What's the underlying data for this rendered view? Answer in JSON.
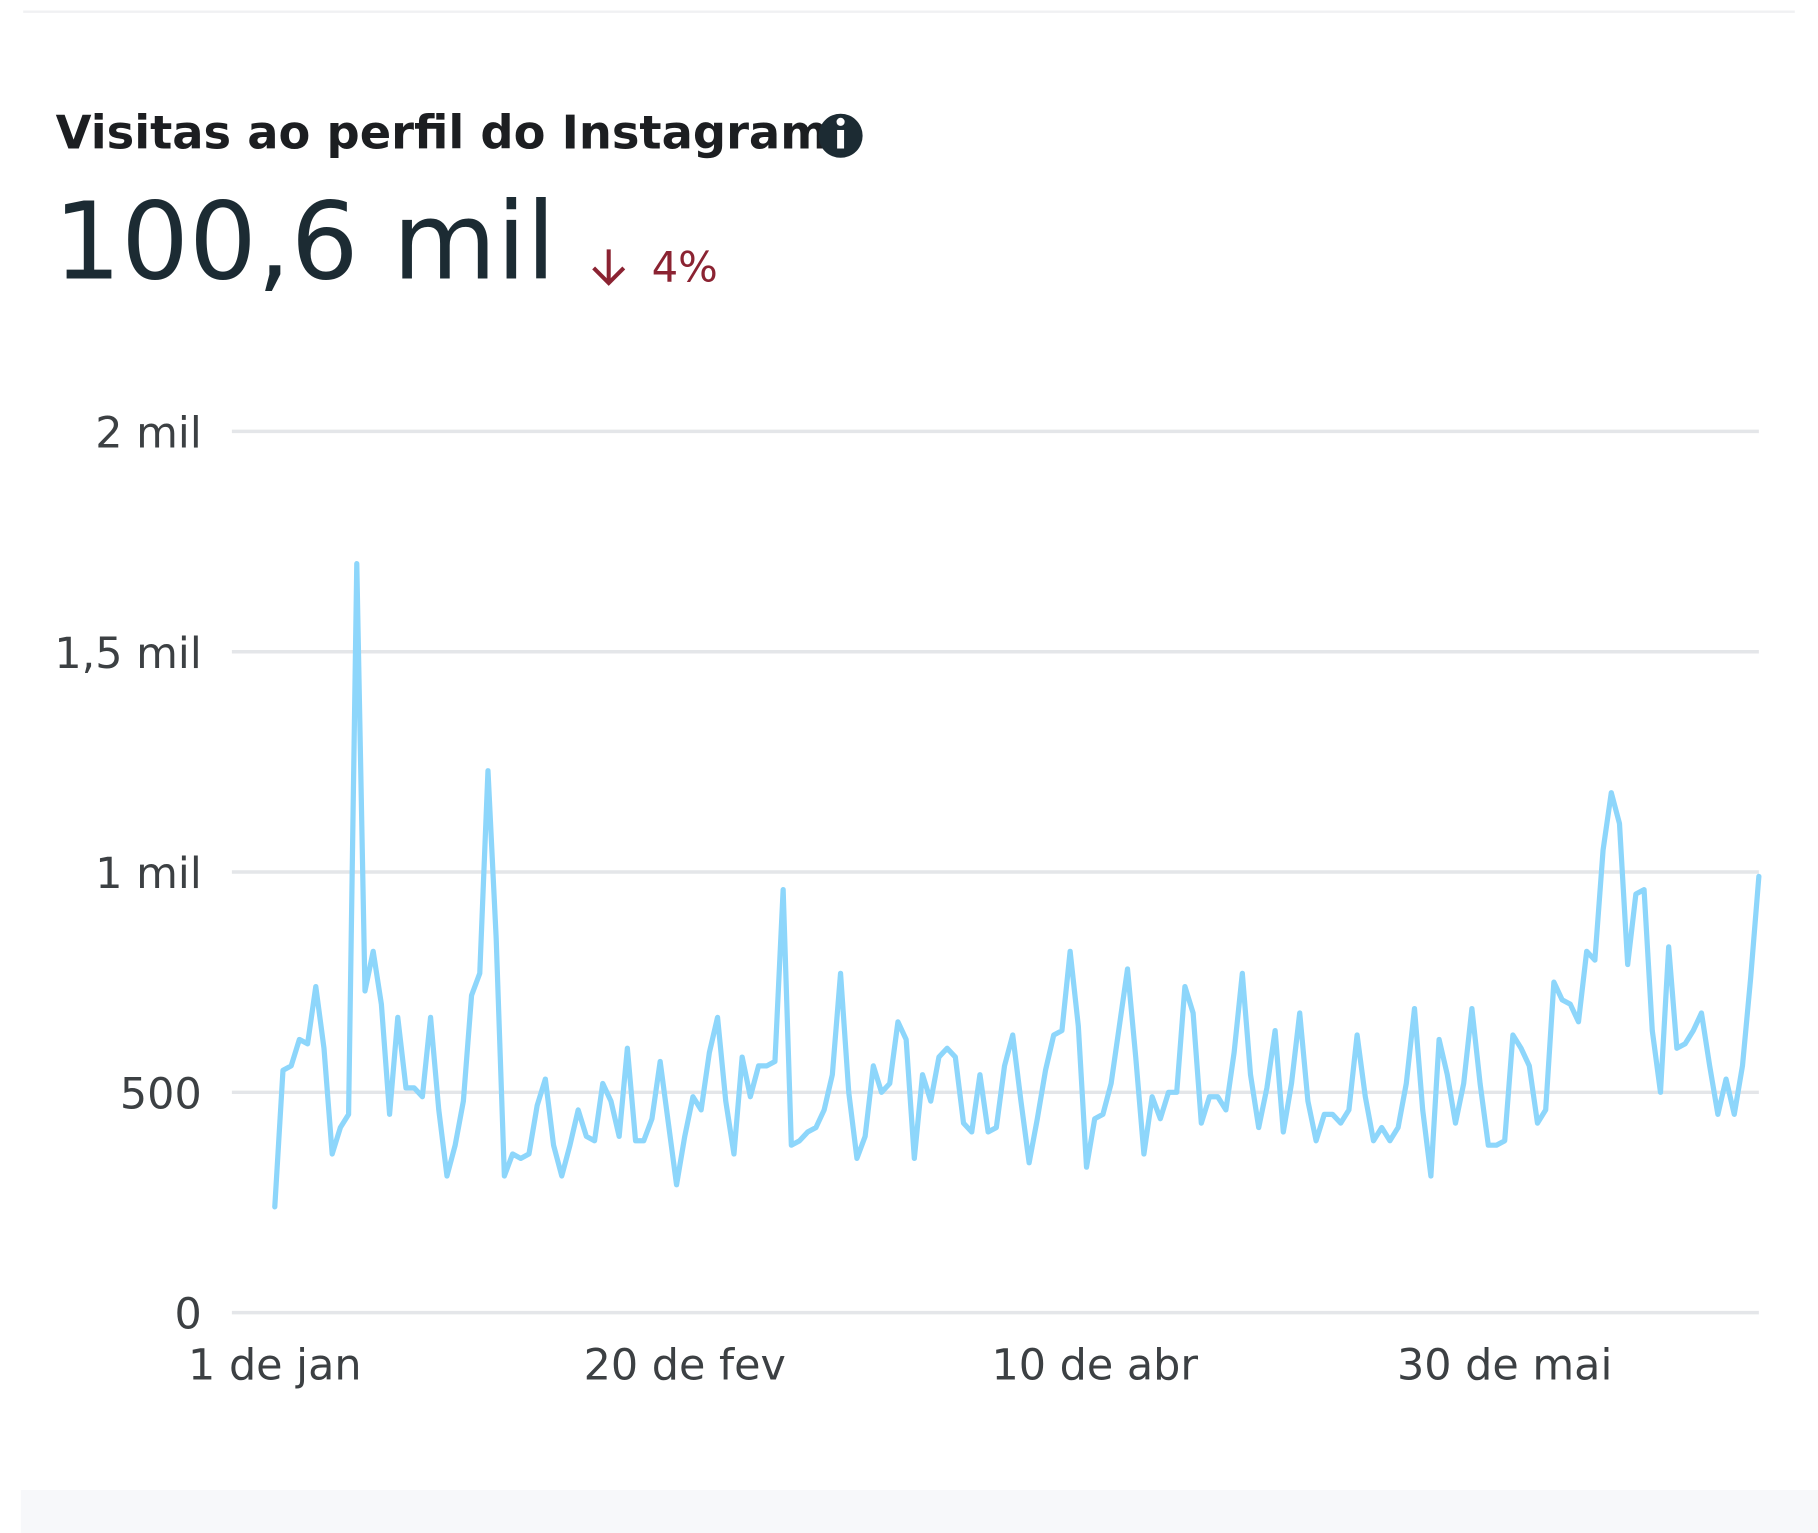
{
  "header": {
    "title": "Visitas ao perfil do Instagram",
    "total": "100,6 mil",
    "change": "4%"
  },
  "chart_data": {
    "type": "line",
    "categories": [
      "1 de jan",
      null,
      null,
      null,
      null,
      null,
      null,
      null,
      null,
      null,
      null,
      null,
      null,
      null,
      null,
      null,
      null,
      null,
      null,
      null,
      null,
      null,
      null,
      null,
      null,
      null,
      null,
      null,
      null,
      null,
      null,
      null,
      null,
      null,
      null,
      null,
      null,
      null,
      null,
      null,
      null,
      null,
      null,
      null,
      null,
      null,
      null,
      null,
      null,
      null,
      "20 de fev",
      null,
      null,
      null,
      null,
      null,
      null,
      null,
      null,
      null,
      null,
      null,
      null,
      null,
      null,
      null,
      null,
      null,
      null,
      null,
      null,
      null,
      null,
      null,
      null,
      null,
      null,
      null,
      null,
      null,
      null,
      null,
      null,
      null,
      null,
      null,
      null,
      null,
      null,
      null,
      null,
      null,
      null,
      null,
      null,
      null,
      null,
      null,
      null,
      null,
      "10 de abr",
      null,
      null,
      null,
      null,
      null,
      null,
      null,
      null,
      null,
      null,
      null,
      null,
      null,
      null,
      null,
      null,
      null,
      null,
      null,
      null,
      null,
      null,
      null,
      null,
      null,
      null,
      null,
      null,
      null,
      null,
      null,
      null,
      null,
      null,
      null,
      null,
      null,
      null,
      null,
      null,
      null,
      null,
      null,
      null,
      null,
      null,
      null,
      null,
      null,
      "30 de mai",
      null,
      null,
      null,
      null,
      null,
      null,
      null,
      null,
      null,
      null,
      null,
      null,
      null,
      null,
      null,
      null,
      null,
      null,
      null,
      null,
      null,
      null,
      null,
      null,
      null,
      null,
      null,
      null,
      null,
      null,
      null
    ],
    "series": [
      {
        "name": "Visitas",
        "color": "#8dd6fb",
        "values": [
          240,
          550,
          560,
          620,
          610,
          740,
          600,
          360,
          420,
          450,
          1700,
          730,
          820,
          700,
          450,
          670,
          510,
          510,
          490,
          670,
          460,
          310,
          380,
          480,
          720,
          770,
          1230,
          850,
          310,
          360,
          350,
          360,
          470,
          530,
          380,
          310,
          380,
          460,
          400,
          390,
          520,
          480,
          400,
          600,
          390,
          390,
          440,
          570,
          430,
          290,
          400,
          490,
          460,
          590,
          670,
          480,
          360,
          580,
          490,
          560,
          560,
          570,
          960,
          380,
          390,
          410,
          420,
          460,
          540,
          770,
          500,
          350,
          400,
          560,
          500,
          520,
          660,
          620,
          350,
          540,
          480,
          580,
          600,
          580,
          430,
          410,
          540,
          410,
          420,
          560,
          630,
          480,
          340,
          440,
          550,
          630,
          640,
          820,
          650,
          330,
          440,
          450,
          520,
          650,
          780,
          580,
          360,
          490,
          440,
          500,
          500,
          740,
          680,
          430,
          490,
          490,
          460,
          590,
          770,
          540,
          420,
          510,
          640,
          410,
          520,
          680,
          480,
          390,
          450,
          450,
          430,
          460,
          630,
          490,
          390,
          420,
          390,
          420,
          520,
          690,
          460,
          310,
          620,
          540,
          430,
          520,
          690,
          520,
          380,
          380,
          390,
          630,
          600,
          560,
          430,
          460,
          750,
          710,
          700,
          660,
          820,
          800,
          1050,
          1180,
          1110,
          790,
          950,
          960,
          640,
          500,
          830,
          600,
          610,
          640,
          680,
          560,
          450,
          530,
          450,
          560,
          760,
          990
        ]
      }
    ],
    "ylim": [
      0,
      2000
    ],
    "yticks": [
      0,
      500,
      {
        "value": 1000,
        "label": "1 mil"
      },
      {
        "value": 1500,
        "label": "1,5 mil"
      },
      {
        "value": 2000,
        "label": "2 mil"
      }
    ],
    "grid": true
  }
}
